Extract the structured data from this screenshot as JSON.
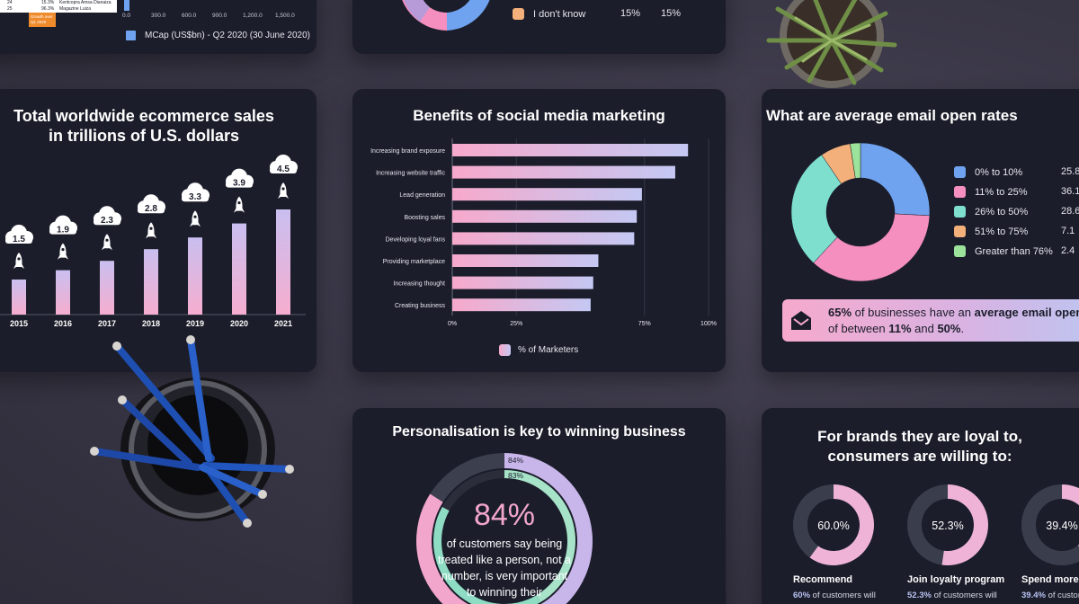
{
  "colors": {
    "background": "#3a3747",
    "card": "#1b1d2a",
    "pink": "#f48fbf",
    "lavender": "#c9b8ee",
    "blue": "#6fa3ef",
    "teal": "#7edfcf",
    "orange": "#f4b07a",
    "green": "#9be29b",
    "grey_track": "#3a3d4b"
  },
  "top_left": {
    "table_rows": [
      {
        "rank": "24",
        "pct": "15.3%",
        "name": "Kentcopra Amsa Dianaiza",
        "value": "29.9"
      },
      {
        "rank": "25",
        "pct": "96.3%",
        "name": "Magazine Luiza",
        "value": "29.5"
      }
    ],
    "growth_badge": "Growth over Q1 2020",
    "axis_ticks": [
      "0.0",
      "300.0",
      "600.0",
      "900.0",
      "1,200.0",
      "1,500.0"
    ],
    "legend_label": "MCap (US$bn) - Q2 2020 (30 June 2020)"
  },
  "top_middle": {
    "legend_label": "I don't know",
    "value_a": "15%",
    "value_b": "15%"
  },
  "ecommerce": {
    "title_line1": "Total worldwide ecommerce sales",
    "title_line2": "in trillions of U.S. dollars",
    "chart_data": {
      "type": "bar",
      "title": "Total worldwide ecommerce sales in trillions of U.S. dollars",
      "categories": [
        "2015",
        "2016",
        "2017",
        "2018",
        "2019",
        "2020",
        "2021"
      ],
      "values": [
        1.5,
        1.9,
        2.3,
        2.8,
        3.3,
        3.9,
        4.5
      ],
      "value_labels": [
        "1.5",
        "1.9",
        "2.3",
        "2.8",
        "3.3",
        "3.9",
        "4.5"
      ],
      "ylim": [
        0,
        5
      ],
      "grid": false,
      "legend": "none"
    }
  },
  "social": {
    "title": "Benefits of social media marketing",
    "chart_data": {
      "type": "bar",
      "orientation": "horizontal",
      "title": "Benefits of social media marketing",
      "categories": [
        "Increasing brand exposure",
        "Increasing website traffic",
        "Lead generation",
        "Boosting sales",
        "Developing loyal fans",
        "Providing marketplace",
        "Increasing thought",
        "Creating business"
      ],
      "series": [
        {
          "name": "% of Marketers",
          "values": [
            92,
            87,
            74,
            72,
            71,
            57,
            55,
            54
          ]
        }
      ],
      "x_ticks": [
        "0%",
        "25%",
        "75%",
        "100%"
      ],
      "x_tick_values": [
        0,
        25,
        75,
        100
      ],
      "xlim": [
        0,
        100
      ],
      "grid": "vertical",
      "legend": "bottom-center"
    }
  },
  "email": {
    "title": "What are average email open rates",
    "chart_data": {
      "type": "pie",
      "title": "What are average email open rates",
      "donut": true,
      "categories": [
        "0% to 10%",
        "11% to 25%",
        "26% to 50%",
        "51% to 75%",
        "Greater than 76%"
      ],
      "values": [
        25.8,
        36.1,
        28.6,
        7.1,
        2.4
      ],
      "value_labels": [
        "25.8",
        "36.1",
        "28.6",
        "7.1",
        "2.4"
      ],
      "slice_colors": [
        "#6fa3ef",
        "#f48fbf",
        "#7edfcf",
        "#f4b07a",
        "#9be29b"
      ],
      "legend": "right"
    },
    "callout_bold_pct": "65%",
    "callout_text1": " of businesses have an ",
    "callout_bold_phrase": "average email open ra",
    "callout_text2": "of between ",
    "callout_bold_a": "11%",
    "callout_and": " and ",
    "callout_bold_b": "50%",
    "callout_end": "."
  },
  "personal": {
    "title": "Personalisation is key to winning business",
    "chart_data": {
      "type": "pie",
      "title": "Personalisation is key to winning business",
      "rings": [
        {
          "label": "84%",
          "value": 84
        },
        {
          "label": "83%",
          "value": 83
        }
      ]
    },
    "big_stat": "84%",
    "text_line1": "of customers say being",
    "text_line2": "treated like a person, not a",
    "text_line3": "number, is very important",
    "text_line4": "to winning their"
  },
  "loyal": {
    "title_line1": "For brands they are loyal to,",
    "title_line2": "consumers are willing to:",
    "chart_data": {
      "type": "pie",
      "title": "For brands they are loyal to, consumers are willing to:",
      "items": [
        {
          "label": "Recommend",
          "value": 60.0,
          "value_label": "60.0%",
          "caption_pct": "60%",
          "caption": " of customers will"
        },
        {
          "label": "Join loyalty program",
          "value": 52.3,
          "value_label": "52.3%",
          "caption_pct": "52.3%",
          "caption": " of customers will"
        },
        {
          "label": "Spend more",
          "value": 39.4,
          "value_label": "39.4%",
          "caption_pct": "39.4%",
          "caption": " of custom"
        }
      ]
    }
  }
}
